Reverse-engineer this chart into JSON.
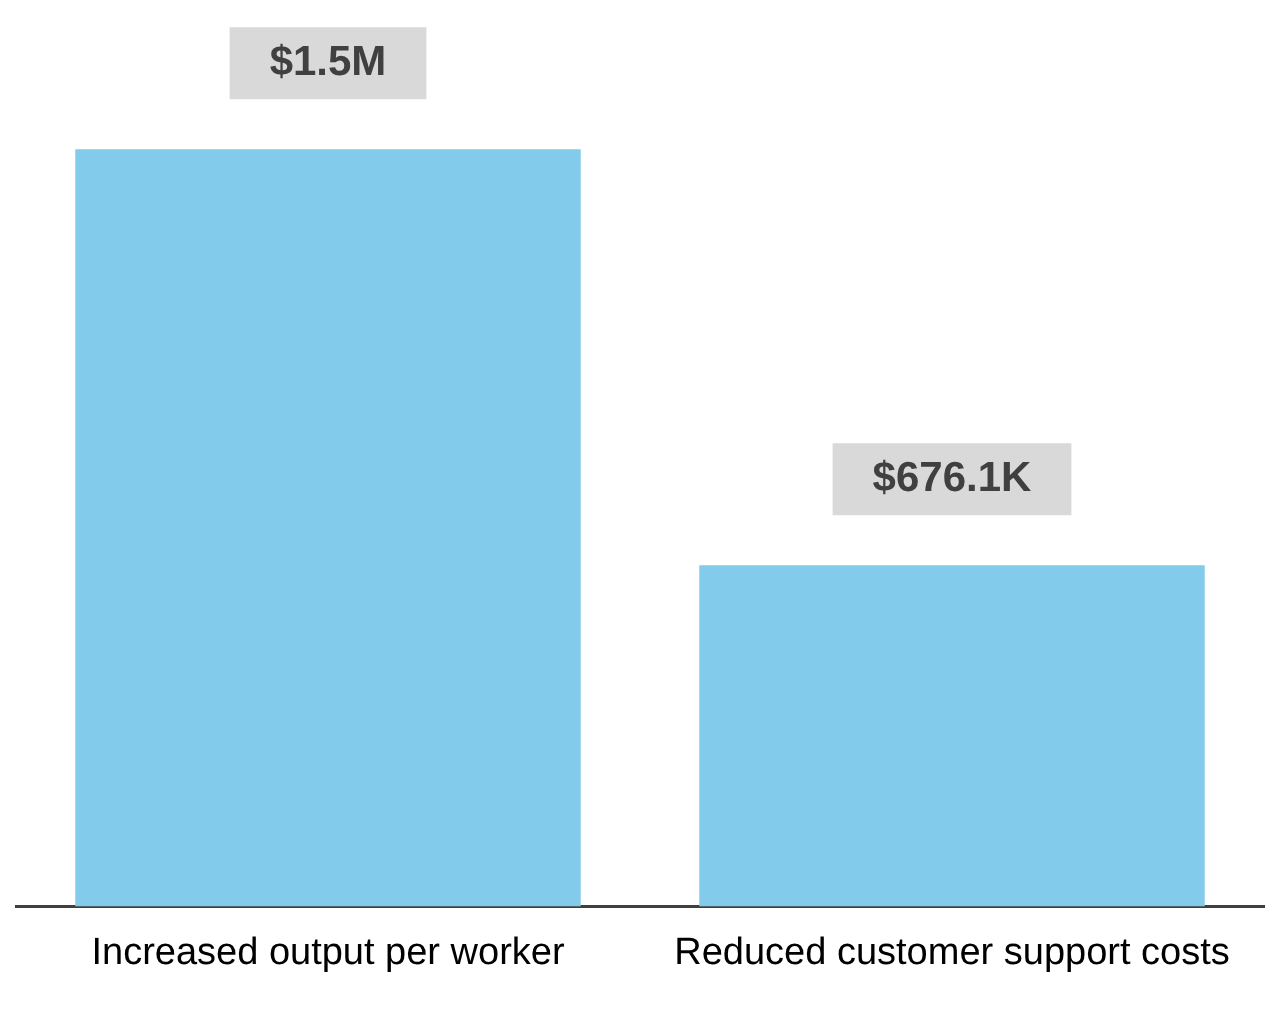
{
  "chart_data": {
    "type": "bar",
    "categories": [
      "Increased output per worker",
      "Reduced customer support costs"
    ],
    "values": [
      1500000,
      676100
    ],
    "color": "#82cbeb",
    "value_labels": [
      "$1.5M",
      "$676.1K"
    ],
    "grid": false,
    "legend": false
  }
}
